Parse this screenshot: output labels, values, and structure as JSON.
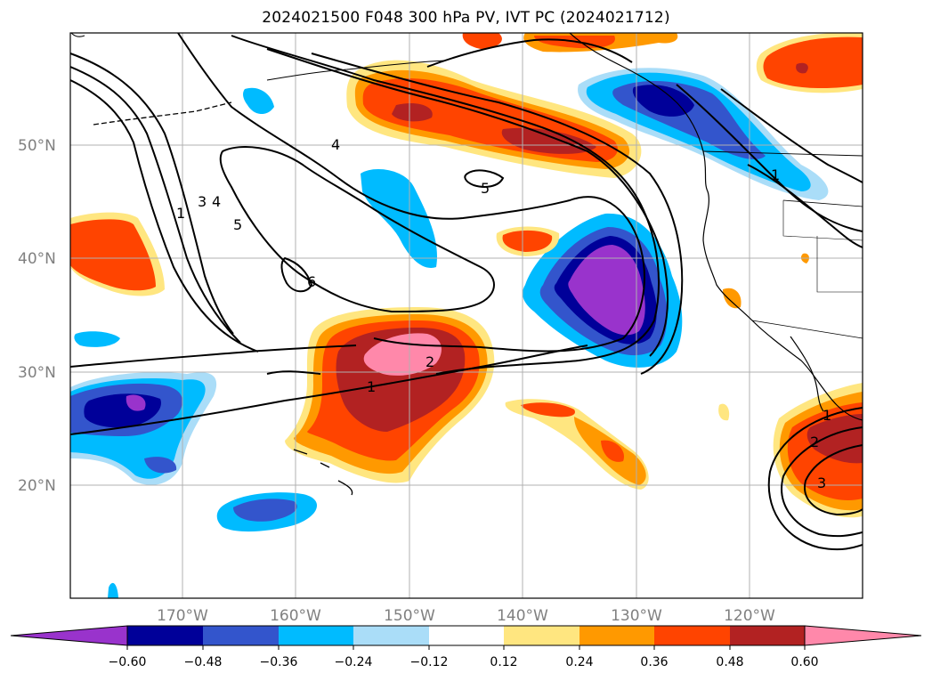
{
  "title": "2024021500 F048 300 hPa PV, IVT PC (2024021712)",
  "lat_labels": [
    "50°N",
    "40°N",
    "30°N",
    "20°N"
  ],
  "lon_labels": [
    "170°W",
    "160°W",
    "150°W",
    "140°W",
    "130°W",
    "120°W"
  ],
  "colorbar": {
    "ticks": [
      "−0.60",
      "−0.48",
      "−0.36",
      "−0.24",
      "−0.12",
      "0.12",
      "0.24",
      "0.36",
      "0.48",
      "0.60"
    ],
    "colors": [
      "#9933cc",
      "#000099",
      "#3355cc",
      "#00bbff",
      "#aaddf8",
      "#ffffff",
      "#ffe680",
      "#ff9900",
      "#ff4400",
      "#b22222",
      "#ff88aa"
    ]
  },
  "contour_labels": [
    "1",
    "3",
    "4",
    "5",
    "4",
    "5",
    "6",
    "2",
    "1",
    "1",
    "2",
    "3",
    "1"
  ],
  "colors": {
    "grid": "#b0b0b0",
    "contour": "#000000",
    "axis_text": "#808080"
  }
}
